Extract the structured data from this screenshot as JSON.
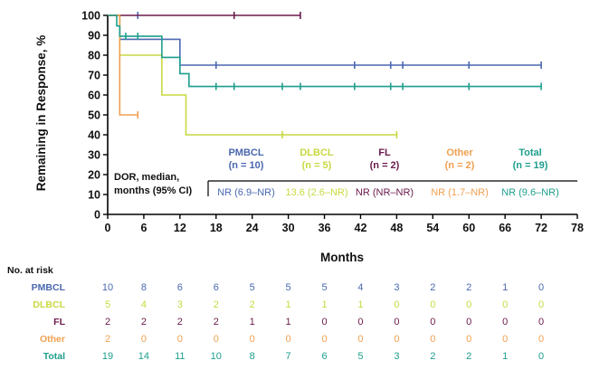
{
  "chart_data": {
    "type": "line",
    "step": true,
    "xlabel": "Months",
    "ylabel": "Remaining in Response, %",
    "xlim": [
      0,
      78
    ],
    "ylim": [
      0,
      100
    ],
    "xticks": [
      "0",
      "6",
      "12",
      "18",
      "24",
      "30",
      "36",
      "42",
      "48",
      "54",
      "60",
      "66",
      "72",
      "78"
    ],
    "yticks": [
      "0",
      "10",
      "20",
      "30",
      "40",
      "50",
      "60",
      "70",
      "80",
      "90",
      "100"
    ],
    "series": [
      {
        "name": "PMBCL",
        "n_label": "(n = 10)",
        "color": "#4a67b0",
        "x": [
          0,
          2,
          7,
          12,
          72
        ],
        "y": [
          100,
          88,
          88,
          75,
          75
        ],
        "censor_x": [
          5,
          18,
          41,
          47,
          49,
          60,
          72
        ],
        "censor_y": [
          100,
          75,
          75,
          75,
          75,
          75,
          75
        ],
        "median": "NR (6.9–NR)"
      },
      {
        "name": "DLBCL",
        "n_label": "(n = 5)",
        "color": "#c8d941",
        "x": [
          0,
          1,
          2,
          9,
          13,
          48
        ],
        "y": [
          100,
          100,
          80,
          60,
          40,
          40
        ],
        "censor_x": [
          29,
          48
        ],
        "censor_y": [
          40,
          40
        ],
        "median": "13.6 (2.6–NR)"
      },
      {
        "name": "FL",
        "n_label": "(n = 2)",
        "color": "#6b1a4b",
        "x": [
          0,
          32
        ],
        "y": [
          100,
          100
        ],
        "censor_x": [
          21,
          32
        ],
        "censor_y": [
          100,
          100
        ],
        "median": "NR (NR–NR)"
      },
      {
        "name": "Other",
        "n_label": "(n = 2)",
        "color": "#f0a050",
        "x": [
          0,
          1.5,
          2,
          5
        ],
        "y": [
          100,
          100,
          50,
          50
        ],
        "censor_x": [
          5
        ],
        "censor_y": [
          50
        ],
        "median": "NR (1.7–NR)"
      },
      {
        "name": "Total",
        "n_label": "(n = 19)",
        "color": "#1e9e8c",
        "x": [
          0,
          1.5,
          2,
          9,
          12,
          13.5,
          72
        ],
        "y": [
          100,
          94.7,
          89.5,
          78.9,
          70.7,
          64.3,
          64.3
        ],
        "censor_x": [
          3,
          5,
          18,
          21,
          29,
          32,
          41,
          47,
          49,
          60,
          72
        ],
        "censor_y": [
          89.5,
          89.5,
          64.3,
          64.3,
          64.3,
          64.3,
          64.3,
          64.3,
          64.3,
          64.3,
          64.3
        ],
        "median": "NR (9.6–NR)"
      }
    ],
    "median_label": "DOR, median,\nmonths (95% CI)",
    "risk_table": {
      "title": "No. at risk",
      "times": [
        0,
        6,
        12,
        18,
        24,
        30,
        36,
        42,
        48,
        54,
        60,
        66,
        72
      ],
      "rows": [
        {
          "name": "PMBCL",
          "values": [
            "10",
            "8",
            "6",
            "6",
            "5",
            "5",
            "5",
            "4",
            "3",
            "2",
            "2",
            "1",
            "0"
          ]
        },
        {
          "name": "DLBCL",
          "values": [
            "5",
            "4",
            "3",
            "2",
            "2",
            "1",
            "1",
            "1",
            "0",
            "0",
            "0",
            "0",
            "0"
          ]
        },
        {
          "name": "FL",
          "values": [
            "2",
            "2",
            "2",
            "2",
            "1",
            "1",
            "0",
            "0",
            "0",
            "0",
            "0",
            "0",
            "0"
          ]
        },
        {
          "name": "Other",
          "values": [
            "2",
            "0",
            "0",
            "0",
            "0",
            "0",
            "0",
            "0",
            "0",
            "0",
            "0",
            "0",
            "0"
          ]
        },
        {
          "name": "Total",
          "values": [
            "19",
            "14",
            "11",
            "10",
            "8",
            "7",
            "6",
            "5",
            "3",
            "2",
            "2",
            "1",
            "0"
          ]
        }
      ]
    }
  }
}
